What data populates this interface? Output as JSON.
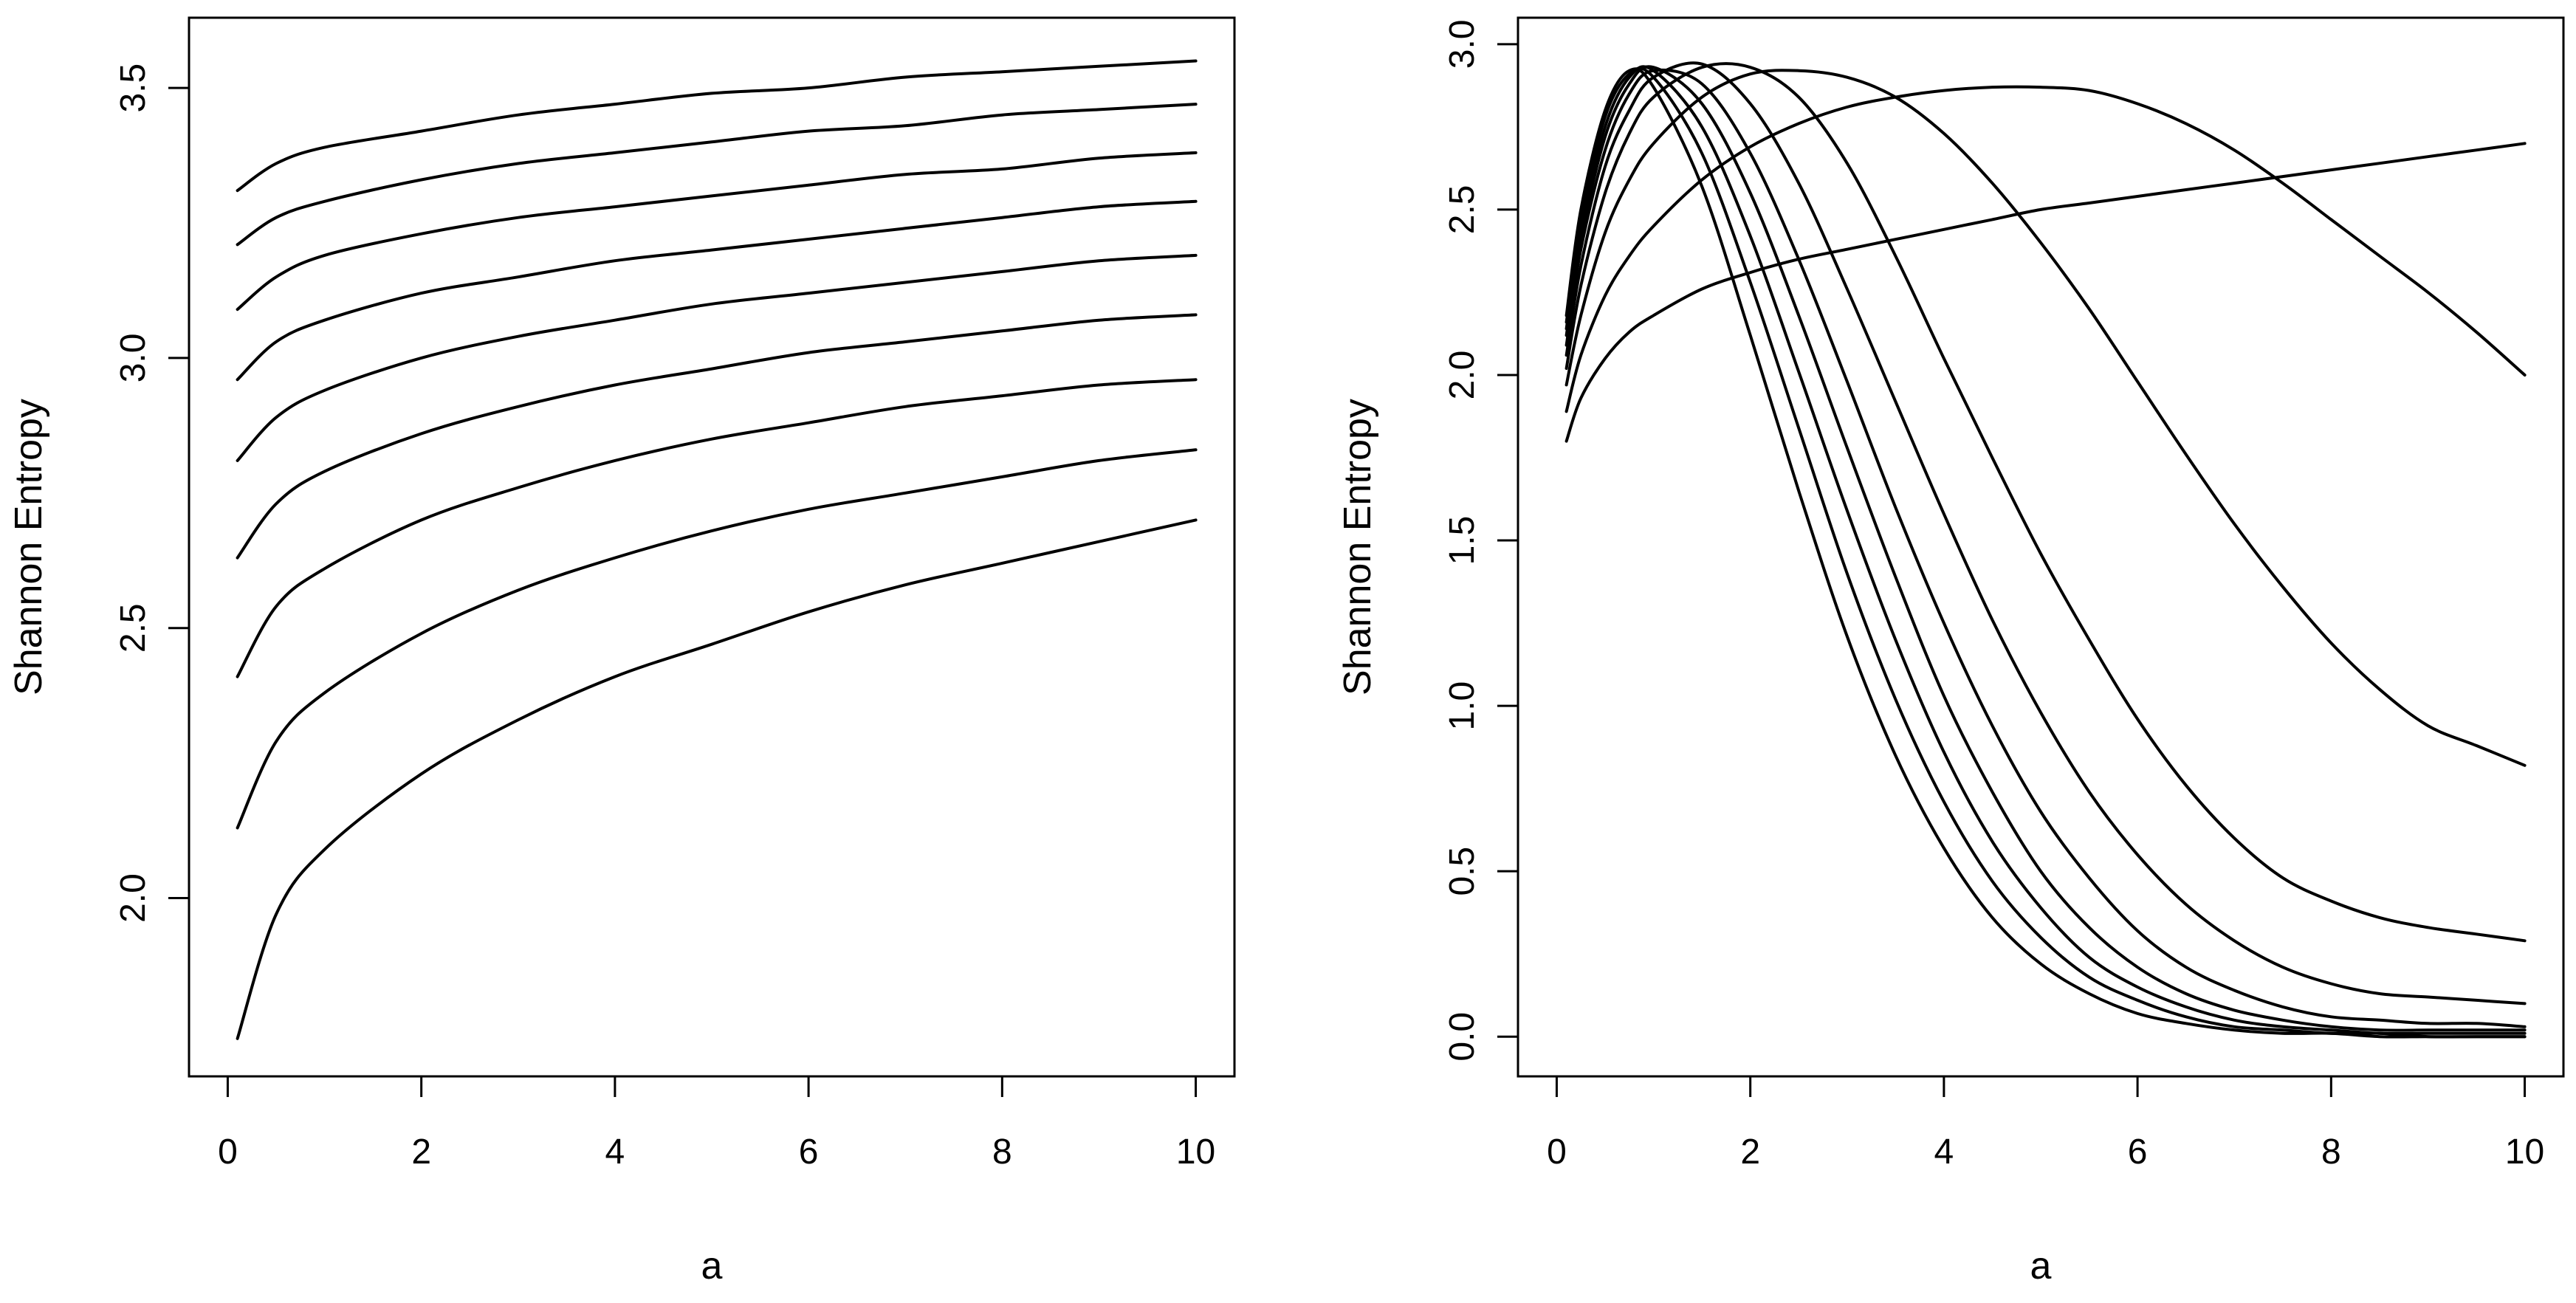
{
  "chart_data": [
    {
      "type": "line",
      "title": "",
      "xlabel": "a",
      "ylabel": "Shannon Entropy",
      "xlim": [
        -0.4,
        10.4
      ],
      "ylim": [
        1.67,
        3.63
      ],
      "xticks": [
        0,
        2,
        4,
        6,
        8,
        10
      ],
      "xtick_labels": [
        "0",
        "2",
        "4",
        "6",
        "8",
        "10"
      ],
      "yticks": [
        2.0,
        2.5,
        3.0,
        3.5
      ],
      "ytick_labels": [
        "2.0",
        "2.5",
        "3.0",
        "3.5"
      ],
      "grid": false,
      "legend": "none",
      "line_color": "#000000",
      "x": [
        0.1,
        0.5,
        1,
        2,
        3,
        4,
        5,
        6,
        7,
        8,
        9,
        10
      ],
      "series": [
        {
          "values": [
            1.74,
            1.97,
            2.09,
            2.23,
            2.33,
            2.41,
            2.47,
            2.53,
            2.58,
            2.62,
            2.66,
            2.7
          ]
        },
        {
          "values": [
            2.13,
            2.29,
            2.38,
            2.49,
            2.57,
            2.63,
            2.68,
            2.72,
            2.75,
            2.78,
            2.81,
            2.83
          ]
        },
        {
          "values": [
            2.41,
            2.54,
            2.61,
            2.7,
            2.76,
            2.81,
            2.85,
            2.88,
            2.91,
            2.93,
            2.95,
            2.96
          ]
        },
        {
          "values": [
            2.63,
            2.73,
            2.79,
            2.86,
            2.91,
            2.95,
            2.98,
            3.01,
            3.03,
            3.05,
            3.07,
            3.08
          ]
        },
        {
          "values": [
            2.81,
            2.89,
            2.94,
            3.0,
            3.04,
            3.07,
            3.1,
            3.12,
            3.14,
            3.16,
            3.18,
            3.19
          ]
        },
        {
          "values": [
            2.96,
            3.03,
            3.07,
            3.12,
            3.15,
            3.18,
            3.2,
            3.22,
            3.24,
            3.26,
            3.28,
            3.29
          ]
        },
        {
          "values": [
            3.09,
            3.15,
            3.19,
            3.23,
            3.26,
            3.28,
            3.3,
            3.32,
            3.34,
            3.35,
            3.37,
            3.38
          ]
        },
        {
          "values": [
            3.21,
            3.26,
            3.29,
            3.33,
            3.36,
            3.38,
            3.4,
            3.42,
            3.43,
            3.45,
            3.46,
            3.47
          ]
        },
        {
          "values": [
            3.31,
            3.36,
            3.39,
            3.42,
            3.45,
            3.47,
            3.49,
            3.5,
            3.52,
            3.53,
            3.54,
            3.55
          ]
        }
      ]
    },
    {
      "type": "line",
      "title": "",
      "xlabel": "a",
      "ylabel": "Shannon Entropy",
      "xlim": [
        -0.4,
        10.4
      ],
      "ylim": [
        -0.12,
        3.08
      ],
      "xticks": [
        0,
        2,
        4,
        6,
        8,
        10
      ],
      "xtick_labels": [
        "0",
        "2",
        "4",
        "6",
        "8",
        "10"
      ],
      "yticks": [
        0.0,
        0.5,
        1.0,
        1.5,
        2.0,
        2.5,
        3.0
      ],
      "ytick_labels": [
        "0.0",
        "0.5",
        "1.0",
        "1.5",
        "2.0",
        "2.5",
        "3.0"
      ],
      "grid": false,
      "legend": "none",
      "line_color": "#000000",
      "x": [
        0.1,
        0.25,
        0.5,
        0.75,
        1,
        1.5,
        2,
        2.5,
        3,
        3.5,
        4,
        4.5,
        5,
        5.5,
        6,
        6.5,
        7,
        7.5,
        8,
        8.5,
        9,
        9.5,
        10
      ],
      "series": [
        {
          "values": [
            1.8,
            1.93,
            2.05,
            2.13,
            2.18,
            2.26,
            2.31,
            2.35,
            2.38,
            2.41,
            2.44,
            2.47,
            2.5,
            2.52,
            2.54,
            2.56,
            2.58,
            2.6,
            2.62,
            2.64,
            2.66,
            2.68,
            2.7
          ]
        },
        {
          "values": [
            1.89,
            2.06,
            2.24,
            2.36,
            2.45,
            2.59,
            2.69,
            2.76,
            2.81,
            2.84,
            2.86,
            2.87,
            2.87,
            2.86,
            2.82,
            2.76,
            2.68,
            2.58,
            2.47,
            2.36,
            2.25,
            2.13,
            2.0
          ]
        },
        {
          "values": [
            1.97,
            2.18,
            2.43,
            2.59,
            2.7,
            2.84,
            2.91,
            2.92,
            2.9,
            2.84,
            2.73,
            2.58,
            2.4,
            2.2,
            1.98,
            1.76,
            1.55,
            1.36,
            1.19,
            1.05,
            0.94,
            0.88,
            0.82
          ]
        },
        {
          "values": [
            2.02,
            2.27,
            2.55,
            2.73,
            2.84,
            2.93,
            2.93,
            2.84,
            2.64,
            2.36,
            2.05,
            1.75,
            1.46,
            1.2,
            0.96,
            0.76,
            0.6,
            0.48,
            0.41,
            0.36,
            0.33,
            0.31,
            0.29
          ]
        },
        {
          "values": [
            2.06,
            2.33,
            2.63,
            2.8,
            2.9,
            2.94,
            2.82,
            2.58,
            2.26,
            1.92,
            1.58,
            1.26,
            0.98,
            0.74,
            0.55,
            0.4,
            0.29,
            0.21,
            0.16,
            0.13,
            0.12,
            0.11,
            0.1
          ]
        },
        {
          "values": [
            2.09,
            2.38,
            2.68,
            2.85,
            2.92,
            2.88,
            2.67,
            2.35,
            1.98,
            1.6,
            1.25,
            0.94,
            0.68,
            0.48,
            0.32,
            0.21,
            0.14,
            0.09,
            0.06,
            0.05,
            0.04,
            0.04,
            0.03
          ]
        },
        {
          "values": [
            2.12,
            2.41,
            2.72,
            2.88,
            2.93,
            2.82,
            2.55,
            2.18,
            1.78,
            1.39,
            1.03,
            0.74,
            0.5,
            0.33,
            0.21,
            0.13,
            0.08,
            0.05,
            0.03,
            0.02,
            0.02,
            0.02,
            0.02
          ]
        },
        {
          "values": [
            2.14,
            2.44,
            2.75,
            2.9,
            2.92,
            2.75,
            2.42,
            2.01,
            1.59,
            1.2,
            0.86,
            0.59,
            0.39,
            0.24,
            0.15,
            0.09,
            0.05,
            0.03,
            0.02,
            0.01,
            0.01,
            0.01,
            0.01
          ]
        },
        {
          "values": [
            2.16,
            2.47,
            2.78,
            2.91,
            2.9,
            2.67,
            2.28,
            1.84,
            1.4,
            1.02,
            0.71,
            0.47,
            0.3,
            0.18,
            0.11,
            0.06,
            0.03,
            0.02,
            0.01,
            0.01,
            0.0,
            0.0,
            0.0
          ]
        },
        {
          "values": [
            2.18,
            2.5,
            2.8,
            2.92,
            2.87,
            2.57,
            2.12,
            1.65,
            1.21,
            0.85,
            0.57,
            0.36,
            0.22,
            0.13,
            0.07,
            0.04,
            0.02,
            0.01,
            0.01,
            0.0,
            0.0,
            0.0,
            0.0
          ]
        }
      ]
    }
  ]
}
